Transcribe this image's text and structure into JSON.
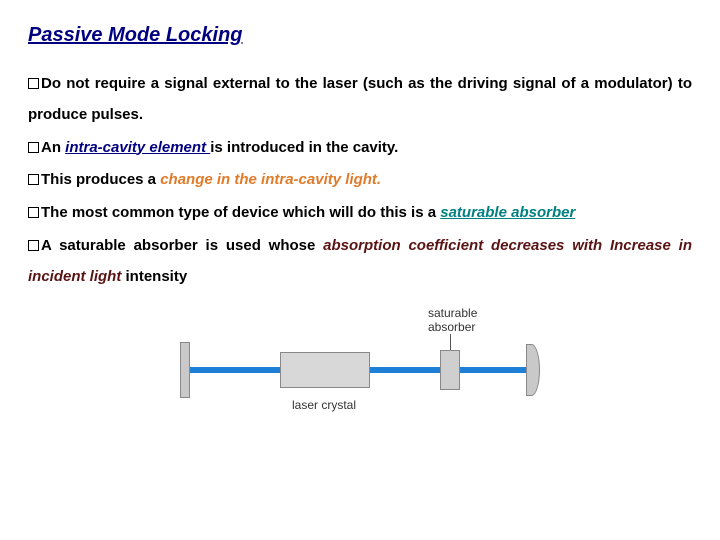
{
  "title": "Passive Mode Locking",
  "bullets": {
    "b1_a": "Do not require a signal external to the laser (such as the driving signal of a modulator) to produce pulses.",
    "b2_a": "An ",
    "b2_em": "intra-cavity element ",
    "b2_b": "is introduced in the cavity.",
    "b3_a": "This produces a ",
    "b3_em": "change in the intra-cavity light.",
    "b4_a": "The most common type of device which will do this is a ",
    "b4_em": "saturable absorber",
    "b5_a": "A saturable absorber is used whose ",
    "b5_em": "absorption coefficient decreases with Increase in incident light ",
    "b5_b": "intensity"
  },
  "diagram": {
    "label_crystal": "laser crystal",
    "label_sat1": "saturable",
    "label_sat2": "absorber",
    "colors": {
      "beam": "#1e7fd6",
      "component_fill": "#d8d8d8",
      "component_border": "#888888",
      "mirror_fill": "#c9c9c9"
    }
  },
  "style": {
    "title_color": "#000080",
    "navy": "#000080",
    "orange": "#e07b2a",
    "darkred": "#5a1414",
    "teal": "#008080",
    "background": "#ffffff",
    "title_fontsize_pt": 15,
    "body_fontsize_pt": 11
  }
}
